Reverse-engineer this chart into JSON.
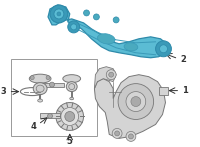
{
  "bg_color": "#ffffff",
  "arm_color": "#5bbcd4",
  "arm_edge_color": "#2e8aaa",
  "arm_dark": "#3a9ab8",
  "part_gray": "#aaaaaa",
  "part_light": "#d4d4d4",
  "part_line": "#777777",
  "box_edge": "#999999",
  "label_color": "#333333"
}
